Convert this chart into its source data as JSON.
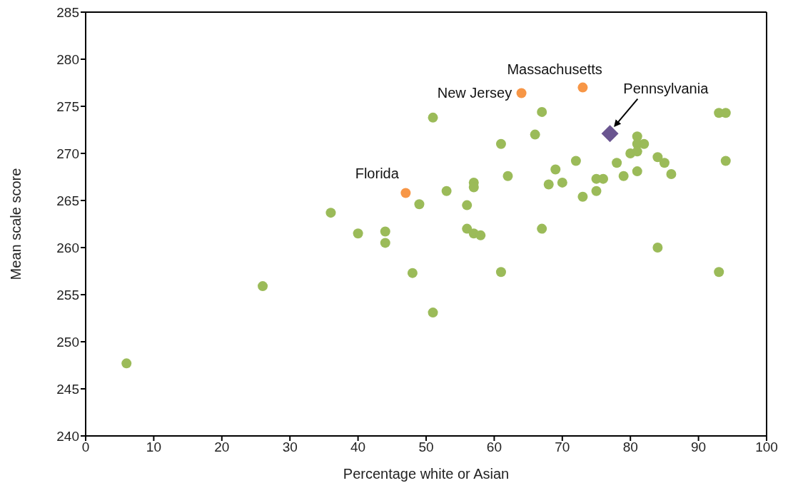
{
  "chart_data": {
    "type": "scatter",
    "xlabel": "Percentage white or Asian",
    "ylabel": "Mean scale score",
    "xlim": [
      0,
      100
    ],
    "xticks": [
      0,
      10,
      20,
      30,
      40,
      50,
      60,
      70,
      80,
      90,
      100
    ],
    "ylim": [
      240,
      285
    ],
    "yticks": [
      240,
      245,
      250,
      255,
      260,
      265,
      270,
      275,
      280,
      285
    ],
    "series": [
      {
        "color": "#9bbb59",
        "marker": "circle",
        "x": [
          6,
          26,
          36,
          40,
          44,
          44,
          48,
          49,
          51,
          51,
          53,
          56,
          56,
          57,
          57,
          57,
          58,
          61,
          61,
          62,
          66,
          67,
          67,
          68,
          69,
          70,
          72,
          73,
          75,
          75,
          76,
          78,
          79,
          80,
          81,
          81,
          81,
          81,
          82,
          84,
          84,
          85,
          86,
          93,
          93,
          94,
          94
        ],
        "values": [
          247.7,
          255.9,
          263.7,
          261.5,
          261.7,
          260.5,
          257.3,
          264.6,
          273.8,
          253.1,
          266.0,
          264.5,
          262.0,
          266.9,
          266.4,
          261.5,
          261.3,
          271.0,
          257.4,
          267.6,
          272.0,
          274.4,
          262.0,
          266.7,
          268.3,
          266.9,
          269.2,
          265.4,
          267.3,
          266.0,
          267.3,
          269.0,
          267.6,
          270.0,
          271.8,
          271.0,
          270.2,
          268.1,
          271.0,
          269.6,
          260.0,
          269.0,
          267.8,
          274.3,
          257.4,
          274.3,
          269.2
        ]
      },
      {
        "color": "#f79646",
        "marker": "circle",
        "x": [
          47,
          64,
          73
        ],
        "values": [
          265.8,
          276.4,
          277.0
        ]
      },
      {
        "color": "#6a5590",
        "marker": "diamond",
        "x": [
          77
        ],
        "values": [
          272.1
        ]
      }
    ],
    "annotations": [
      {
        "text": "Florida",
        "x": 47,
        "y": 265.8
      },
      {
        "text": "New Jersey",
        "x": 64,
        "y": 276.4
      },
      {
        "text": "Massachusetts",
        "x": 73,
        "y": 277.0
      },
      {
        "text": "Pennsylvania",
        "x": 77,
        "y": 272.1
      }
    ]
  }
}
